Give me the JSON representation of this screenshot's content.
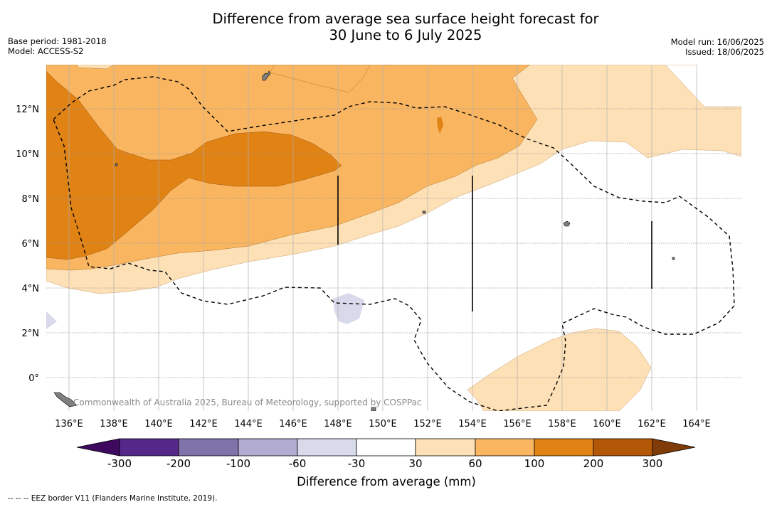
{
  "title": {
    "line1": "Difference from average sea surface height forecast for",
    "line2": "30 June to 6 July 2025"
  },
  "meta": {
    "base_period": "Base period: 1981-2018",
    "model": "Model: ACCESS-S2",
    "model_run": "Model run: 16/06/2025",
    "issued": "Issued: 18/06/2025"
  },
  "map": {
    "credit": "Commonwealth of Australia 2025, Bureau of Meteorology, supported by COSPPac",
    "lat_labels": [
      "12°N",
      "10°N",
      "8°N",
      "6°N",
      "4°N",
      "2°N",
      "0°"
    ],
    "lon_labels": [
      "136°E",
      "138°E",
      "140°E",
      "142°E",
      "144°E",
      "146°E",
      "148°E",
      "150°E",
      "152°E",
      "154°E",
      "156°E",
      "158°E",
      "160°E",
      "162°E",
      "164°E"
    ],
    "colors": {
      "land": "#808080",
      "eez_border": "#000000",
      "gridline": "#b0b0b0"
    }
  },
  "colorbar": {
    "title": "Difference from average (mm)",
    "tick_labels": [
      "-300",
      "-200",
      "-100",
      "-60",
      "-30",
      "30",
      "60",
      "100",
      "200",
      "300"
    ],
    "colors": [
      "#3e0a5f",
      "#542788",
      "#8073ac",
      "#b2abd2",
      "#d8daeb",
      "#ffffff",
      "#fee0b6",
      "#f9b560",
      "#e08214",
      "#b35806",
      "#7f3b08"
    ]
  },
  "footnote": "--  --  -- EEZ border V11 (Flanders Marine Institute, 2019)."
}
